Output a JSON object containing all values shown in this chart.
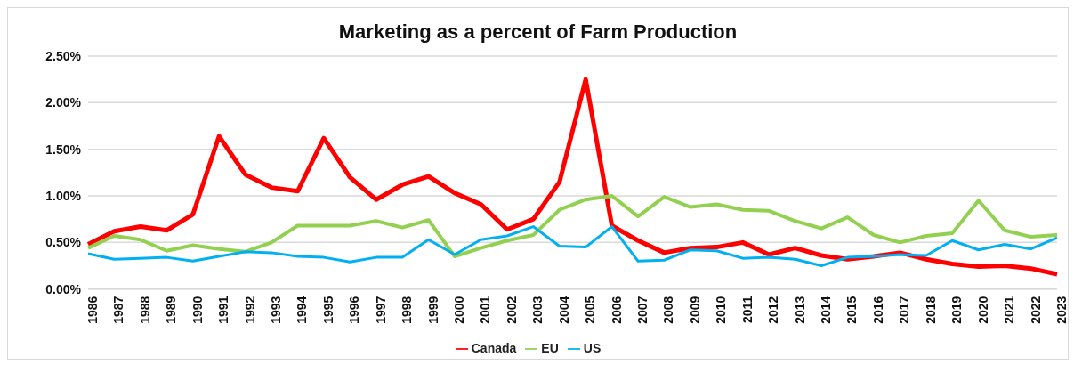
{
  "chart_data": {
    "type": "line",
    "title": "Marketing as a percent of Farm Production",
    "categories": [
      "1986",
      "1987",
      "1988",
      "1989",
      "1990",
      "1991",
      "1992",
      "1993",
      "1994",
      "1995",
      "1996",
      "1997",
      "1998",
      "1999",
      "2000",
      "2001",
      "2002",
      "2003",
      "2004",
      "2005",
      "2006",
      "2007",
      "2008",
      "2009",
      "2010",
      "2011",
      "2012",
      "2013",
      "2014",
      "2015",
      "2016",
      "2017",
      "2018",
      "2019",
      "2020",
      "2021",
      "2022",
      "2023"
    ],
    "series": [
      {
        "name": "Canada",
        "color": "#ff0000",
        "values": [
          0.48,
          0.62,
          0.67,
          0.63,
          0.8,
          1.64,
          1.23,
          1.09,
          1.05,
          1.62,
          1.2,
          0.96,
          1.12,
          1.21,
          1.03,
          0.91,
          0.64,
          0.75,
          1.15,
          2.25,
          0.68,
          0.52,
          0.39,
          0.44,
          0.45,
          0.5,
          0.37,
          0.44,
          0.36,
          0.32,
          0.35,
          0.39,
          0.32,
          0.27,
          0.24,
          0.25,
          0.22,
          0.16
        ]
      },
      {
        "name": "EU",
        "color": "#92d050",
        "values": [
          0.44,
          0.57,
          0.53,
          0.41,
          0.47,
          0.43,
          0.4,
          0.5,
          0.68,
          0.68,
          0.68,
          0.73,
          0.66,
          0.74,
          0.35,
          0.44,
          0.52,
          0.58,
          0.85,
          0.96,
          1.0,
          0.78,
          0.99,
          0.88,
          0.91,
          0.85,
          0.84,
          0.73,
          0.65,
          0.77,
          0.58,
          0.5,
          0.57,
          0.6,
          0.95,
          0.63,
          0.56,
          0.58
        ]
      },
      {
        "name": "US",
        "color": "#00b0f0",
        "values": [
          0.38,
          0.32,
          0.33,
          0.34,
          0.3,
          0.35,
          0.4,
          0.39,
          0.35,
          0.34,
          0.29,
          0.34,
          0.34,
          0.53,
          0.37,
          0.53,
          0.57,
          0.67,
          0.46,
          0.45,
          0.67,
          0.3,
          0.31,
          0.42,
          0.41,
          0.33,
          0.34,
          0.32,
          0.25,
          0.34,
          0.35,
          0.37,
          0.36,
          0.52,
          0.42,
          0.48,
          0.43,
          0.55
        ]
      }
    ],
    "ylim": [
      0,
      2.5
    ],
    "yticks": [
      {
        "value": 0,
        "label": "0.00%"
      },
      {
        "value": 0.5,
        "label": "0.50%"
      },
      {
        "value": 1,
        "label": "1.00%"
      },
      {
        "value": 1.5,
        "label": "1.50%"
      },
      {
        "value": 2,
        "label": "2.00%"
      },
      {
        "value": 2.5,
        "label": "2.50%"
      }
    ],
    "grid": "y",
    "legend": "bottom",
    "marker": "none",
    "line_style": "solid"
  }
}
